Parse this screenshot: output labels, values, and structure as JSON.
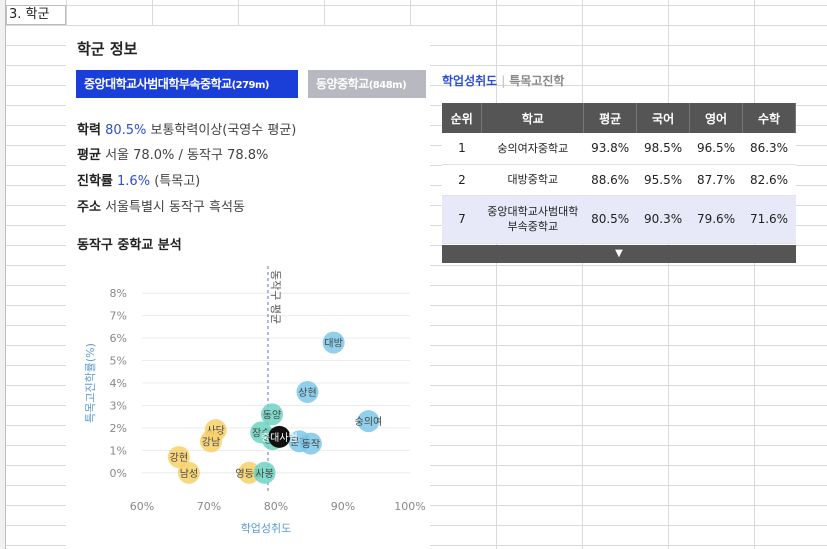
{
  "sheet": {
    "cell_a1": "3. 학군"
  },
  "panel": {
    "title": "학군 정보",
    "tabs": [
      {
        "label": "중앙대학교사범대학부속중학교",
        "distance": "(279m)"
      },
      {
        "label": "동양중학교",
        "distance": "(848m)"
      }
    ],
    "info": {
      "academic_label": "학력",
      "academic_value": "80.5%",
      "academic_note": "보통학력이상(국영수 평균)",
      "avg_label": "평균",
      "avg_value": "서울 78.0% / 동작구 78.8%",
      "advance_label": "진학률",
      "advance_value": "1.6%",
      "advance_note": "(특목고)",
      "address_label": "주소",
      "address_value": "서울특별시 동작구 흑석동"
    },
    "analysis_title": "동작구 중학교 분석"
  },
  "chart_data": {
    "type": "scatter",
    "xlabel": "학업성취도",
    "ylabel": "특목고진학률(%)",
    "xlim": [
      60,
      100
    ],
    "ylim": [
      -0.5,
      8.5
    ],
    "xticks": [
      "60%",
      "70%",
      "80%",
      "90%",
      "100%"
    ],
    "yticks": [
      "0%",
      "1%",
      "2%",
      "3%",
      "4%",
      "5%",
      "6%",
      "7%",
      "8%"
    ],
    "ref_line": {
      "x": 78.8,
      "label": "동작구 평균"
    },
    "colors": {
      "high": "#7ec8ea",
      "mid": "#6dd3c2",
      "low": "#f7d169",
      "current": "#111111"
    },
    "points": [
      {
        "name": "대방",
        "x": 88.6,
        "y": 5.8,
        "group": "high"
      },
      {
        "name": "상현",
        "x": 84.7,
        "y": 3.6,
        "group": "high"
      },
      {
        "name": "숭의여",
        "x": 93.8,
        "y": 2.3,
        "group": "high"
      },
      {
        "name": "동양",
        "x": 79.4,
        "y": 2.6,
        "group": "mid"
      },
      {
        "name": "문창",
        "x": 83.5,
        "y": 1.4,
        "group": "high"
      },
      {
        "name": "동작",
        "x": 85.2,
        "y": 1.3,
        "group": "high"
      },
      {
        "name": "장승",
        "x": 77.8,
        "y": 1.8,
        "group": "mid"
      },
      {
        "name": "강남",
        "x": 79.5,
        "y": 1.5,
        "group": "mid"
      },
      {
        "name": "중대사범",
        "x": 80.5,
        "y": 1.6,
        "group": "current"
      },
      {
        "name": "사당",
        "x": 71.0,
        "y": 1.9,
        "group": "low"
      },
      {
        "name": "강남",
        "x": 70.3,
        "y": 1.4,
        "group": "low"
      },
      {
        "name": "강현",
        "x": 65.5,
        "y": 0.7,
        "group": "low"
      },
      {
        "name": "남성",
        "x": 67.0,
        "y": 0.0,
        "group": "low"
      },
      {
        "name": "영등포",
        "x": 76.0,
        "y": 0.0,
        "group": "low"
      },
      {
        "name": "사봉",
        "x": 78.3,
        "y": 0.0,
        "group": "mid"
      }
    ]
  },
  "ranking": {
    "tabs": {
      "active": "학업성취도",
      "inactive": "특목고진학"
    },
    "headers": [
      "순위",
      "학교",
      "평균",
      "국어",
      "영어",
      "수학"
    ],
    "rows": [
      [
        "1",
        "숭의여자중학교",
        "93.8%",
        "98.5%",
        "96.5%",
        "86.3%"
      ],
      [
        "2",
        "대방중학교",
        "88.6%",
        "95.5%",
        "87.7%",
        "82.6%"
      ],
      [
        "7",
        "중앙대학교사범대학부속중학교",
        "80.5%",
        "90.3%",
        "79.6%",
        "71.6%"
      ]
    ],
    "more_icon": "▼"
  }
}
